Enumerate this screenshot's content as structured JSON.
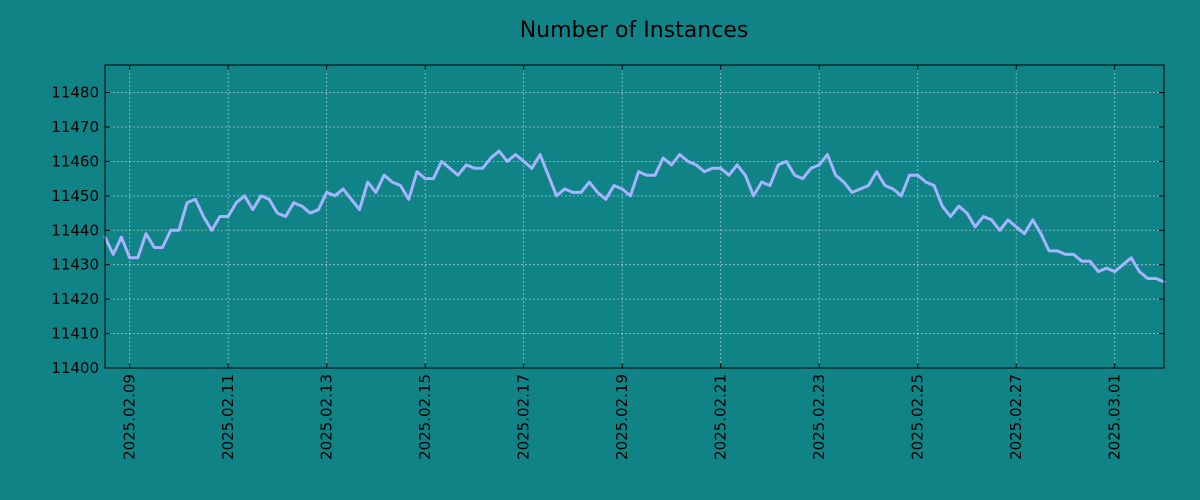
{
  "chart_data": {
    "type": "line",
    "title": "Number of Instances",
    "xlabel": "",
    "ylabel": "",
    "x_range": [
      "2025-02-08 12:00",
      "2025-03-02 00:00"
    ],
    "ylim": [
      11400,
      11488
    ],
    "y_ticks": [
      11400,
      11410,
      11420,
      11430,
      11440,
      11450,
      11460,
      11470,
      11480
    ],
    "x_ticks": [
      "2025.02.09",
      "2025.02.11",
      "2025.02.13",
      "2025.02.15",
      "2025.02.17",
      "2025.02.19",
      "2025.02.21",
      "2025.02.23",
      "2025.02.25",
      "2025.02.27",
      "2025.03.01"
    ],
    "grid": true,
    "line_color": "#a5b4ff",
    "series": [
      {
        "x": [
          "2025-02-08 12:00",
          "2025-02-08 16:00",
          "2025-02-08 20:00",
          "2025-02-09 00:00",
          "2025-02-09 04:00",
          "2025-02-09 08:00",
          "2025-02-09 12:00",
          "2025-02-09 16:00",
          "2025-02-09 20:00",
          "2025-02-10 00:00",
          "2025-02-10 04:00",
          "2025-02-10 08:00",
          "2025-02-10 12:00",
          "2025-02-10 16:00",
          "2025-02-10 20:00",
          "2025-02-11 00:00",
          "2025-02-11 04:00",
          "2025-02-11 08:00",
          "2025-02-11 12:00",
          "2025-02-11 16:00",
          "2025-02-11 20:00",
          "2025-02-12 00:00",
          "2025-02-12 04:00",
          "2025-02-12 08:00",
          "2025-02-12 12:00",
          "2025-02-12 16:00",
          "2025-02-12 20:00",
          "2025-02-13 00:00",
          "2025-02-13 04:00",
          "2025-02-13 08:00",
          "2025-02-13 12:00",
          "2025-02-13 16:00",
          "2025-02-13 20:00",
          "2025-02-14 00:00",
          "2025-02-14 04:00",
          "2025-02-14 08:00",
          "2025-02-14 12:00",
          "2025-02-14 16:00",
          "2025-02-14 20:00",
          "2025-02-15 00:00",
          "2025-02-15 04:00",
          "2025-02-15 08:00",
          "2025-02-15 12:00",
          "2025-02-15 16:00",
          "2025-02-15 20:00",
          "2025-02-16 00:00",
          "2025-02-16 04:00",
          "2025-02-16 08:00",
          "2025-02-16 12:00",
          "2025-02-16 16:00",
          "2025-02-16 20:00",
          "2025-02-17 00:00",
          "2025-02-17 04:00",
          "2025-02-17 08:00",
          "2025-02-17 12:00",
          "2025-02-17 16:00",
          "2025-02-17 20:00",
          "2025-02-18 00:00",
          "2025-02-18 04:00",
          "2025-02-18 08:00",
          "2025-02-18 12:00",
          "2025-02-18 16:00",
          "2025-02-18 20:00",
          "2025-02-19 00:00",
          "2025-02-19 04:00",
          "2025-02-19 08:00",
          "2025-02-19 12:00",
          "2025-02-19 16:00",
          "2025-02-19 20:00",
          "2025-02-20 00:00",
          "2025-02-20 04:00",
          "2025-02-20 08:00",
          "2025-02-20 12:00",
          "2025-02-20 16:00",
          "2025-02-20 20:00",
          "2025-02-21 00:00",
          "2025-02-21 04:00",
          "2025-02-21 08:00",
          "2025-02-21 12:00",
          "2025-02-21 16:00",
          "2025-02-21 20:00",
          "2025-02-22 00:00",
          "2025-02-22 04:00",
          "2025-02-22 08:00",
          "2025-02-22 12:00",
          "2025-02-22 16:00",
          "2025-02-22 20:00",
          "2025-02-23 00:00",
          "2025-02-23 04:00",
          "2025-02-23 08:00",
          "2025-02-23 12:00",
          "2025-02-23 16:00",
          "2025-02-23 20:00",
          "2025-02-24 00:00",
          "2025-02-24 04:00",
          "2025-02-24 08:00",
          "2025-02-24 12:00",
          "2025-02-24 16:00",
          "2025-02-24 20:00",
          "2025-02-25 00:00",
          "2025-02-25 04:00",
          "2025-02-25 08:00",
          "2025-02-25 12:00",
          "2025-02-25 16:00",
          "2025-02-25 20:00",
          "2025-02-26 00:00",
          "2025-02-26 04:00",
          "2025-02-26 08:00",
          "2025-02-26 12:00",
          "2025-02-26 16:00",
          "2025-02-26 20:00",
          "2025-02-27 00:00",
          "2025-02-27 04:00",
          "2025-02-27 08:00",
          "2025-02-27 12:00",
          "2025-02-27 16:00",
          "2025-02-27 20:00",
          "2025-02-28 00:00",
          "2025-02-28 04:00",
          "2025-02-28 08:00",
          "2025-02-28 12:00",
          "2025-02-28 16:00",
          "2025-02-28 20:00",
          "2025-03-01 00:00",
          "2025-03-01 04:00",
          "2025-03-01 08:00",
          "2025-03-01 12:00",
          "2025-03-01 16:00",
          "2025-03-01 20:00",
          "2025-03-02 00:00"
        ],
        "values": [
          11438,
          11433,
          11438,
          11432,
          11432,
          11439,
          11435,
          11435,
          11440,
          11440,
          11448,
          11449,
          11444,
          11440,
          11444,
          11444,
          11448,
          11450,
          11446,
          11450,
          11449,
          11445,
          11444,
          11448,
          11447,
          11445,
          11446,
          11451,
          11450,
          11452,
          11449,
          11446,
          11454,
          11451,
          11456,
          11454,
          11453,
          11449,
          11457,
          11455,
          11455,
          11460,
          11458,
          11456,
          11459,
          11458,
          11458,
          11461,
          11463,
          11460,
          11462,
          11460,
          11458,
          11462,
          11456,
          11450,
          11452,
          11451,
          11451,
          11454,
          11451,
          11449,
          11453,
          11452,
          11450,
          11457,
          11456,
          11456,
          11461,
          11459,
          11462,
          11460,
          11459,
          11457,
          11458,
          11458,
          11456,
          11459,
          11456,
          11450,
          11454,
          11453,
          11459,
          11460,
          11456,
          11455,
          11458,
          11459,
          11462,
          11456,
          11454,
          11451,
          11452,
          11453,
          11457,
          11453,
          11452,
          11450,
          11456,
          11456,
          11454,
          11453,
          11447,
          11444,
          11447,
          11445,
          11441,
          11444,
          11443,
          11440,
          11443,
          11441,
          11439,
          11443,
          11439,
          11434,
          11434,
          11433,
          11433,
          11431,
          11431,
          11428,
          11429,
          11428,
          11430,
          11432,
          11428,
          11426,
          11426,
          11425
        ]
      }
    ]
  }
}
